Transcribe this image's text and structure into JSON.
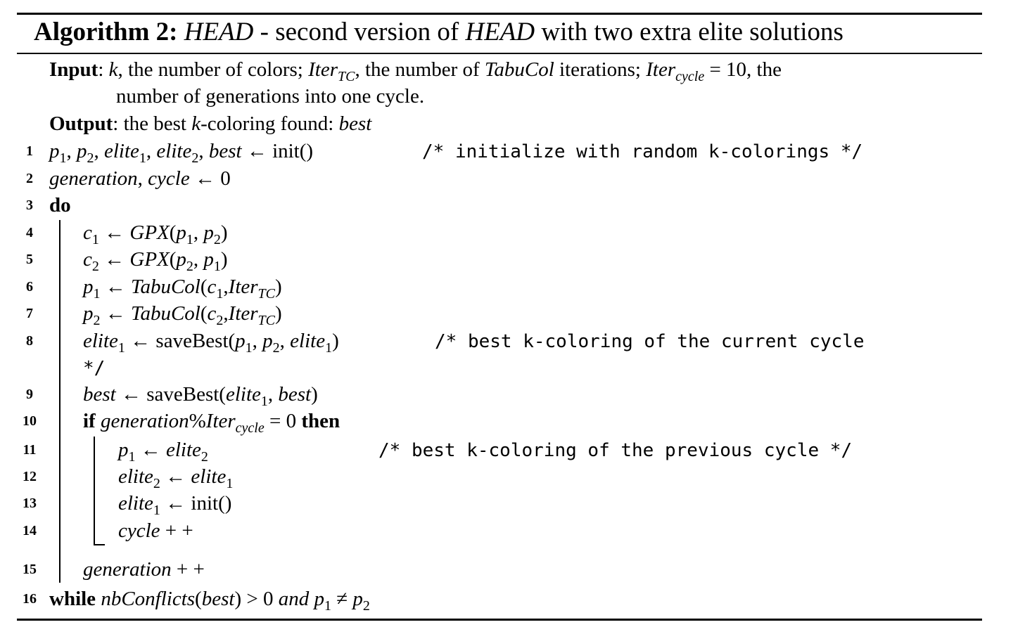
{
  "title": {
    "prefix": "Algorithm 2:",
    "name": "HEAD",
    "mid": " - second version of ",
    "name2": "HEAD",
    "suffix": " with two extra elite solutions"
  },
  "input": {
    "label": "Input",
    "text1": ": k, the number of colors; Iter",
    "text1_sub": "TC",
    "text2": ", the number of ",
    "tabucol": "TabuCol",
    "text3": " iterations; Iter",
    "text3_sub": "cycle",
    "text4": " = 10, the",
    "text5": "number of generations into one cycle."
  },
  "output": {
    "label": "Output",
    "text": ": the best k-coloring found: ",
    "best": "best"
  },
  "lines": [
    {
      "num": "1",
      "code": "p1, p2, elite1, elite2, best ← init()",
      "comment": "/* initialize with random k-colorings */"
    },
    {
      "num": "2",
      "code": "generation, cycle ← 0"
    },
    {
      "num": "3",
      "code": "do"
    },
    {
      "num": "4",
      "code": "c1 ← GPX(p1, p2)"
    },
    {
      "num": "5",
      "code": "c2 ← GPX(p2, p1)"
    },
    {
      "num": "6",
      "code": "p1 ← TabuCol(c1, IterTC)"
    },
    {
      "num": "7",
      "code": "p2 ← TabuCol(c2, IterTC)"
    },
    {
      "num": "8",
      "code": "elite1 ← saveBest(p1, p2, elite1)",
      "comment": "/* best k-coloring of the current cycle",
      "comment_cont": "*/"
    },
    {
      "num": "9",
      "code": "best ← saveBest(elite1, best)"
    },
    {
      "num": "10",
      "code": "if generation%Itercycle = 0 then"
    },
    {
      "num": "11",
      "code": "p1 ← elite2",
      "comment": "/* best k-coloring of the previous cycle */"
    },
    {
      "num": "12",
      "code": "elite2 ← elite1"
    },
    {
      "num": "13",
      "code": "elite1 ← init()"
    },
    {
      "num": "14",
      "code": "cycle + +"
    },
    {
      "num": "15",
      "code": "generation + +"
    },
    {
      "num": "16",
      "code": "while nbConflicts(best) > 0 and p1 ≠ p2"
    }
  ]
}
